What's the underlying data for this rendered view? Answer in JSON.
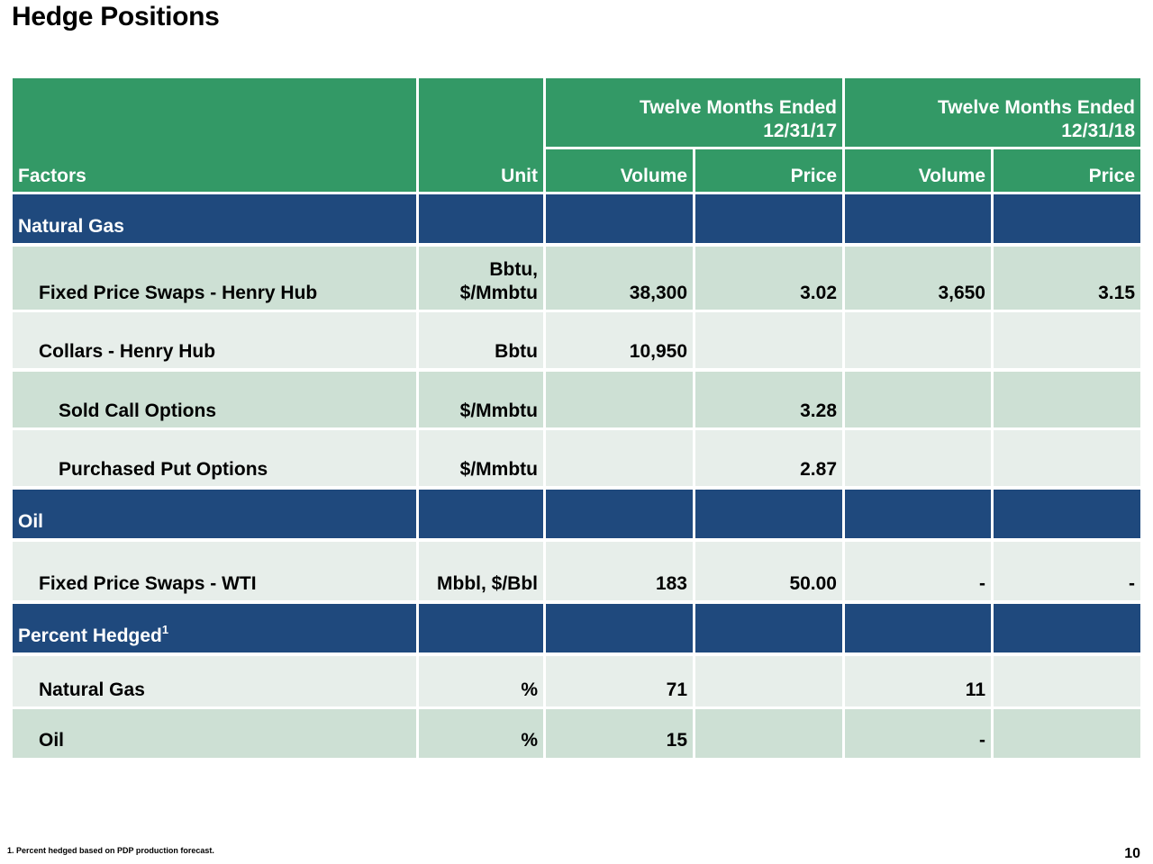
{
  "title": "Hedge Positions",
  "header": {
    "period1": "Twelve Months Ended\n12/31/17",
    "period2": "Twelve Months Ended\n12/31/18",
    "factors": "Factors",
    "unit": "Unit",
    "volume1": "Volume",
    "price1": "Price",
    "volume2": "Volume",
    "price2": "Price"
  },
  "sections": {
    "natural_gas": "Natural Gas",
    "oil": "Oil",
    "percent_hedged": "Percent Hedged",
    "percent_hedged_sup": "1"
  },
  "rows": [
    {
      "factor": "Fixed Price Swaps - Henry Hub",
      "unit": "Bbtu,\n$/Mmbtu",
      "v1": "38,300",
      "p1": "3.02",
      "v2": "3,650",
      "p2": "3.15"
    },
    {
      "factor": "Collars - Henry Hub",
      "unit": "Bbtu",
      "v1": "10,950",
      "p1": "",
      "v2": "",
      "p2": ""
    },
    {
      "factor": "Sold Call Options",
      "unit": "$/Mmbtu",
      "v1": "",
      "p1": "3.28",
      "v2": "",
      "p2": ""
    },
    {
      "factor": "Purchased Put Options",
      "unit": "$/Mmbtu",
      "v1": "",
      "p1": "2.87",
      "v2": "",
      "p2": ""
    },
    {
      "factor": "Fixed Price Swaps - WTI",
      "unit": "Mbbl, $/Bbl",
      "v1": "183",
      "p1": "50.00",
      "v2": "-",
      "p2": "-"
    },
    {
      "factor": "Natural Gas",
      "unit": "%",
      "v1": "71",
      "p1": "",
      "v2": "11",
      "p2": ""
    },
    {
      "factor": "Oil",
      "unit": "%",
      "v1": "15",
      "p1": "",
      "v2": "-",
      "p2": ""
    }
  ],
  "footnote": "1.  Percent hedged based on PDP production forecast.",
  "page_number": "10"
}
